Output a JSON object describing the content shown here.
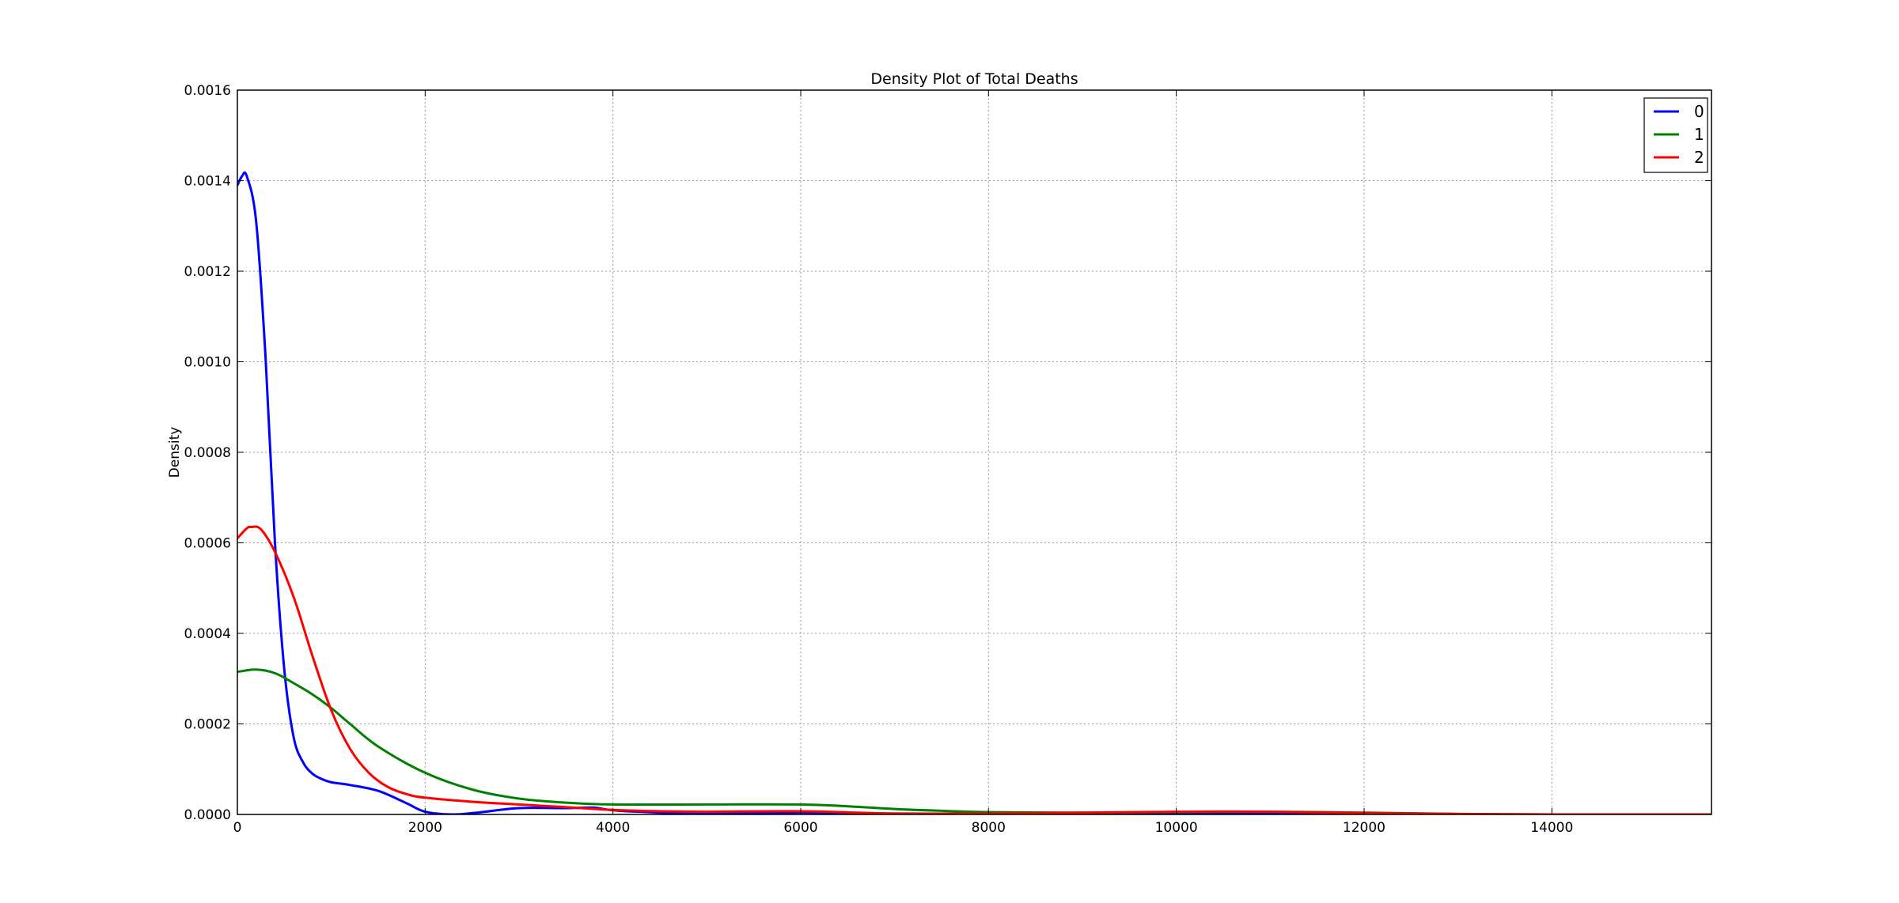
{
  "chart_data": {
    "type": "line",
    "title": "Density Plot of Total Deaths",
    "xlabel": "",
    "ylabel": "Density",
    "xlim": [
      0,
      15700
    ],
    "ylim": [
      0,
      0.0016
    ],
    "x_ticks": [
      0,
      2000,
      4000,
      6000,
      8000,
      10000,
      12000,
      14000
    ],
    "x_tick_labels": [
      "0",
      "2000",
      "4000",
      "6000",
      "8000",
      "10000",
      "12000",
      "14000"
    ],
    "y_ticks": [
      0,
      0.0002,
      0.0004,
      0.0006,
      0.0008,
      0.001,
      0.0012,
      0.0014,
      0.0016
    ],
    "y_tick_labels": [
      "0.0000",
      "0.0002",
      "0.0004",
      "0.0006",
      "0.0008",
      "0.0010",
      "0.0012",
      "0.0014",
      "0.0016"
    ],
    "grid": true,
    "legend_position": "top-right",
    "series": [
      {
        "name": "0",
        "color": "#0000ff",
        "x": [
          0,
          50,
          100,
          200,
          300,
          400,
          500,
          600,
          700,
          800,
          900,
          1000,
          1200,
          1500,
          1800,
          2000,
          2300,
          2600,
          3000,
          3500,
          3800,
          4000,
          4500,
          5000,
          6000,
          7000,
          8000,
          8300,
          9000,
          10000,
          11000,
          12000,
          13000,
          14000,
          15700
        ],
        "y": [
          0.00139,
          0.00141,
          0.00141,
          0.00131,
          0.00101,
          0.0006,
          0.00032,
          0.00017,
          0.000115,
          9e-05,
          7.8e-05,
          7.1e-05,
          6.5e-05,
          5.2e-05,
          2.5e-05,
          6e-06,
          0.0,
          5e-06,
          1.4e-05,
          1.4e-05,
          1.5e-05,
          9e-06,
          4e-06,
          2e-06,
          4e-06,
          2e-06,
          2e-06,
          4e-06,
          2e-06,
          1e-06,
          1e-06,
          0.0,
          0.0,
          0.0,
          0.0
        ]
      },
      {
        "name": "1",
        "color": "#008000",
        "x": [
          0,
          200,
          400,
          600,
          800,
          1000,
          1200,
          1500,
          2000,
          2500,
          3000,
          3500,
          4000,
          5000,
          6000,
          6500,
          7000,
          7500,
          8000,
          9000,
          10000,
          11000,
          12000,
          13000,
          14000,
          15700
        ],
        "y": [
          0.000315,
          0.00032,
          0.000312,
          0.00029,
          0.000265,
          0.000235,
          0.0002,
          0.00015,
          9.2e-05,
          5.5e-05,
          3.5e-05,
          2.6e-05,
          2.2e-05,
          2.2e-05,
          2.2e-05,
          1.8e-05,
          1.2e-05,
          8e-06,
          5e-06,
          4e-06,
          5e-06,
          6e-06,
          4e-06,
          1e-06,
          0.0,
          0.0
        ]
      },
      {
        "name": "2",
        "color": "#ff0000",
        "x": [
          0,
          100,
          150,
          250,
          400,
          600,
          800,
          1000,
          1200,
          1400,
          1600,
          1800,
          2000,
          2500,
          3000,
          3500,
          4000,
          4500,
          5000,
          6000,
          7000,
          8000,
          9000,
          10000,
          11000,
          12000,
          13000,
          14000,
          15700
        ],
        "y": [
          0.00061,
          0.000632,
          0.000635,
          0.00063,
          0.00058,
          0.00048,
          0.00035,
          0.00023,
          0.000145,
          9.2e-05,
          6.1e-05,
          4.5e-05,
          3.7e-05,
          2.8e-05,
          2.2e-05,
          1.6e-05,
          1e-05,
          7e-06,
          6e-06,
          7e-06,
          2e-06,
          2e-06,
          4e-06,
          6e-06,
          6e-06,
          3e-06,
          1e-06,
          0.0,
          0.0
        ]
      }
    ]
  }
}
